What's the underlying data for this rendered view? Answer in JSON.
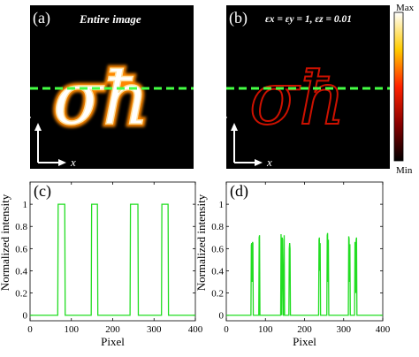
{
  "figure": {
    "panel_a": {
      "label": "(a)",
      "title": "Entire image",
      "y_axis": "y",
      "x_axis": "x",
      "glyphs": "σħ"
    },
    "panel_b": {
      "label": "(b)",
      "title": "εx = εy = 1, εz = 0.01",
      "y_axis": "y",
      "x_axis": "x",
      "glyphs": "σħ"
    },
    "colorbar": {
      "max_label": "Max",
      "min_label": "Min"
    },
    "colors": {
      "line": "#22dd22",
      "dashed": "#44ff44",
      "glow": "#ffdd88",
      "dark": "#000000"
    }
  },
  "chart_data": [
    {
      "type": "line",
      "label": "(c)",
      "xlabel": "Pixel",
      "ylabel": "Normalized intensity",
      "xlim": [
        0,
        400
      ],
      "ylim": [
        -0.05,
        1.2
      ],
      "xticks": [
        "0",
        "100",
        "200",
        "300",
        "400"
      ],
      "yticks": [
        "0",
        "0.2",
        "0.4",
        "0.6",
        "0.8",
        "1"
      ],
      "series": [
        {
          "x": [
            0,
            67,
            68,
            84,
            85,
            148,
            149,
            163,
            164,
            242,
            243,
            261,
            262,
            318,
            319,
            334,
            335,
            400
          ],
          "values": [
            0,
            0,
            1,
            1,
            0,
            0,
            1,
            1,
            0,
            0,
            1,
            1,
            0,
            0,
            1,
            1,
            0,
            0
          ]
        }
      ]
    },
    {
      "type": "line",
      "label": "(d)",
      "xlabel": "Pixel",
      "ylabel": "Normalized intensity",
      "xlim": [
        0,
        400
      ],
      "ylim": [
        -0.05,
        1.2
      ],
      "xticks": [
        "0",
        "100",
        "200",
        "300",
        "400"
      ],
      "yticks": [
        "0",
        "0.2",
        "0.4",
        "0.6",
        "0.8",
        "1"
      ],
      "series": [
        {
          "x": [
            0,
            63,
            64,
            65,
            66,
            67,
            68,
            69,
            83,
            84,
            85,
            86,
            139,
            140,
            141,
            142,
            143,
            144,
            146,
            147,
            148,
            149,
            160,
            161,
            162,
            163,
            164,
            236,
            237,
            238,
            239,
            240,
            241,
            257,
            258,
            259,
            260,
            261,
            262,
            312,
            313,
            314,
            315,
            316,
            317,
            328,
            329,
            330,
            331,
            332,
            333,
            334,
            400
          ],
          "values": [
            0,
            0,
            0.63,
            0.65,
            0.3,
            0.66,
            0.65,
            0,
            0,
            0.7,
            0.72,
            0,
            0,
            0.73,
            0.55,
            0,
            0.7,
            0.68,
            0,
            0,
            0.72,
            0,
            0,
            0.6,
            0.65,
            0.6,
            0,
            0,
            0.68,
            0.7,
            0.4,
            0.65,
            0,
            0,
            0.72,
            0.74,
            0.3,
            0.68,
            0,
            0,
            0.71,
            0.69,
            0.3,
            0.64,
            0,
            0,
            0.66,
            0.6,
            0.2,
            0.68,
            0.7,
            0,
            0
          ]
        }
      ]
    }
  ]
}
